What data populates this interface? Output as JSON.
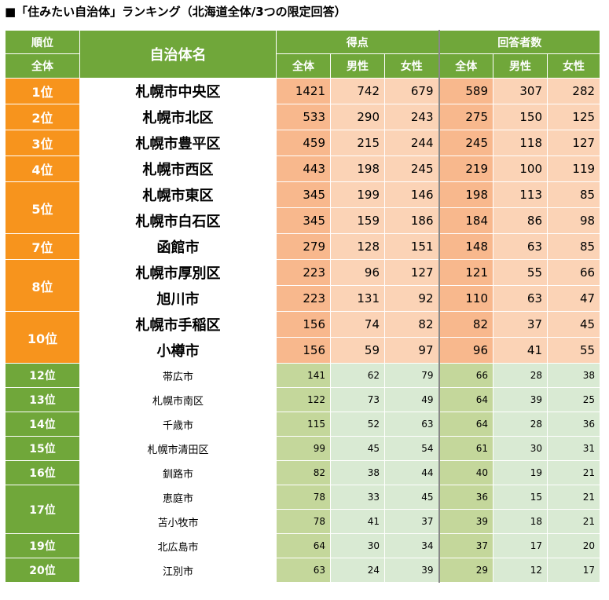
{
  "title": "■「住みたい自治体」ランキング（北海道全体/3つの限定回答）",
  "header": {
    "rank": "順位",
    "rank_sub": "全体",
    "name": "自治体名",
    "score": "得点",
    "respondents": "回答者数",
    "all": "全体",
    "male": "男性",
    "female": "女性"
  },
  "rows": [
    {
      "rank": "1位",
      "name": "札幌市中央区",
      "s_all": "1421",
      "s_m": "742",
      "s_f": "679",
      "r_all": "589",
      "r_m": "307",
      "r_f": "282"
    },
    {
      "rank": "2位",
      "name": "札幌市北区",
      "s_all": "533",
      "s_m": "290",
      "s_f": "243",
      "r_all": "275",
      "r_m": "150",
      "r_f": "125"
    },
    {
      "rank": "3位",
      "name": "札幌市豊平区",
      "s_all": "459",
      "s_m": "215",
      "s_f": "244",
      "r_all": "245",
      "r_m": "118",
      "r_f": "127"
    },
    {
      "rank": "4位",
      "name": "札幌市西区",
      "s_all": "443",
      "s_m": "198",
      "s_f": "245",
      "r_all": "219",
      "r_m": "100",
      "r_f": "119"
    },
    {
      "rank": "5位",
      "name": "札幌市東区",
      "s_all": "345",
      "s_m": "199",
      "s_f": "146",
      "r_all": "198",
      "r_m": "113",
      "r_f": "85"
    },
    {
      "rank": "",
      "name": "札幌市白石区",
      "s_all": "345",
      "s_m": "159",
      "s_f": "186",
      "r_all": "184",
      "r_m": "86",
      "r_f": "98"
    },
    {
      "rank": "7位",
      "name": "函館市",
      "s_all": "279",
      "s_m": "128",
      "s_f": "151",
      "r_all": "148",
      "r_m": "63",
      "r_f": "85"
    },
    {
      "rank": "8位",
      "name": "札幌市厚別区",
      "s_all": "223",
      "s_m": "96",
      "s_f": "127",
      "r_all": "121",
      "r_m": "55",
      "r_f": "66"
    },
    {
      "rank": "",
      "name": "旭川市",
      "s_all": "223",
      "s_m": "131",
      "s_f": "92",
      "r_all": "110",
      "r_m": "63",
      "r_f": "47"
    },
    {
      "rank": "10位",
      "name": "札幌市手稲区",
      "s_all": "156",
      "s_m": "74",
      "s_f": "82",
      "r_all": "82",
      "r_m": "37",
      "r_f": "45"
    },
    {
      "rank": "",
      "name": "小樽市",
      "s_all": "156",
      "s_m": "59",
      "s_f": "97",
      "r_all": "96",
      "r_m": "41",
      "r_f": "55"
    },
    {
      "rank": "12位",
      "name": "帯広市",
      "s_all": "141",
      "s_m": "62",
      "s_f": "79",
      "r_all": "66",
      "r_m": "28",
      "r_f": "38"
    },
    {
      "rank": "13位",
      "name": "札幌市南区",
      "s_all": "122",
      "s_m": "73",
      "s_f": "49",
      "r_all": "64",
      "r_m": "39",
      "r_f": "25"
    },
    {
      "rank": "14位",
      "name": "千歳市",
      "s_all": "115",
      "s_m": "52",
      "s_f": "63",
      "r_all": "64",
      "r_m": "28",
      "r_f": "36"
    },
    {
      "rank": "15位",
      "name": "札幌市清田区",
      "s_all": "99",
      "s_m": "45",
      "s_f": "54",
      "r_all": "61",
      "r_m": "30",
      "r_f": "31"
    },
    {
      "rank": "16位",
      "name": "釧路市",
      "s_all": "82",
      "s_m": "38",
      "s_f": "44",
      "r_all": "40",
      "r_m": "19",
      "r_f": "21"
    },
    {
      "rank": "17位",
      "name": "恵庭市",
      "s_all": "78",
      "s_m": "33",
      "s_f": "45",
      "r_all": "36",
      "r_m": "15",
      "r_f": "21"
    },
    {
      "rank": "",
      "name": "苫小牧市",
      "s_all": "78",
      "s_m": "41",
      "s_f": "37",
      "r_all": "39",
      "r_m": "18",
      "r_f": "21"
    },
    {
      "rank": "19位",
      "name": "北広島市",
      "s_all": "64",
      "s_m": "30",
      "s_f": "34",
      "r_all": "37",
      "r_m": "17",
      "r_f": "20"
    },
    {
      "rank": "20位",
      "name": "江別市",
      "s_all": "63",
      "s_m": "24",
      "s_f": "39",
      "r_all": "29",
      "r_m": "12",
      "r_f": "17"
    }
  ]
}
